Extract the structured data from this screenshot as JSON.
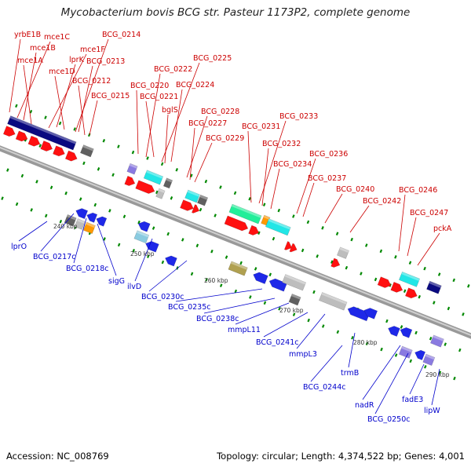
{
  "title": "Mycobacterium bovis BCG str. Pasteur 1173P2, complete genome",
  "footer": {
    "accession": "Accession: NC_008769",
    "summary": "Topology: circular; Length: 4,374,522 bp; Genes: 4,001"
  },
  "colors": {
    "forward_label": "#cc0000",
    "reverse_label": "#0000cc",
    "backbone": "#888888",
    "tick": "#008800"
  },
  "scale_labels": [
    "240 kbp",
    "250 kbp",
    "260 kbp",
    "270 kbp",
    "280 kbp",
    "290 kbp"
  ],
  "forward_labels": [
    "yrbE1B",
    "mce1C",
    "mce1B",
    "mce1A",
    "mce1F",
    "lprK",
    "mce1D",
    "BCG_0214",
    "BCG_0213",
    "BCG_0212",
    "BCG_0215",
    "BCG_0225",
    "BCG_0222",
    "BCG_0220",
    "BCG_0224",
    "BCG_0221",
    "bglS",
    "BCG_0228",
    "BCG_0227",
    "BCG_0229",
    "BCG_0233",
    "BCG_0231",
    "BCG_0232",
    "BCG_0234",
    "BCG_0236",
    "BCG_0237",
    "BCG_0240",
    "BCG_0242",
    "BCG_0246",
    "BCG_0247",
    "pckA"
  ],
  "reverse_labels": [
    "lprO",
    "BCG_0217c",
    "BCG_0218c",
    "sigG",
    "ilvD",
    "BCG_0230c",
    "BCG_0235c",
    "BCG_0238c",
    "mmpL11",
    "BCG_0241c",
    "mmpL3",
    "trmB",
    "BCG_0244c",
    "nadR",
    "BCG_0250c",
    "fadE3",
    "lipW"
  ]
}
